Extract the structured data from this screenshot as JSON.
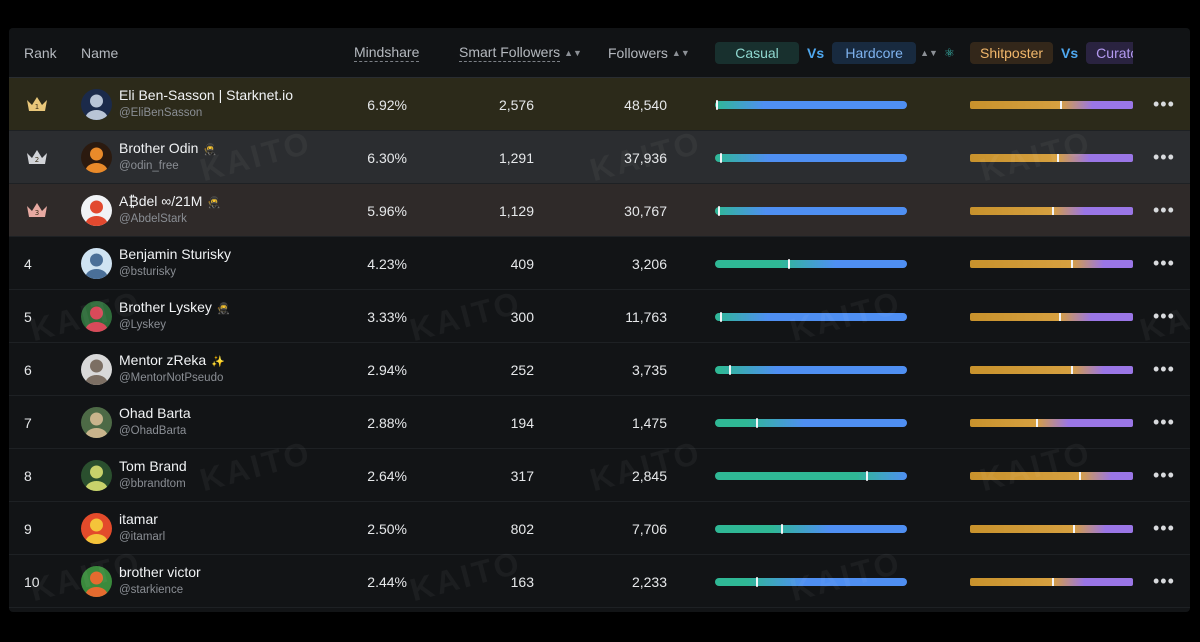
{
  "header": {
    "rank": "Rank",
    "name": "Name",
    "mindshare": "Mindshare",
    "smart_followers": "Smart Followers",
    "followers": "Followers",
    "casual": "Casual",
    "vs1": "Vs",
    "hardcore": "Hardcore",
    "shitposter": "Shitposter",
    "vs2": "Vs",
    "curator": "Curato"
  },
  "watermark": "KAITO",
  "rows": [
    {
      "rank": "1",
      "name": "Eli Ben-Sasson | Starknet.io",
      "badge": "",
      "handle": "@EliBenSasson",
      "mindshare": "6.92%",
      "smart": "2,576",
      "followers": "48,540",
      "casual_pct": 0.0,
      "shit_pct": 0.56
    },
    {
      "rank": "2",
      "name": "Brother Odin",
      "badge": "🥷",
      "handle": "@odin_free",
      "mindshare": "6.30%",
      "smart": "1,291",
      "followers": "37,936",
      "casual_pct": 0.02,
      "shit_pct": 0.54
    },
    {
      "rank": "3",
      "name": "A₿del ∞/21M",
      "badge": "🥷",
      "handle": "@AbdelStark",
      "mindshare": "5.96%",
      "smart": "1,129",
      "followers": "30,767",
      "casual_pct": 0.01,
      "shit_pct": 0.51
    },
    {
      "rank": "4",
      "name": "Benjamin Sturisky",
      "badge": "",
      "handle": "@bsturisky",
      "mindshare": "4.23%",
      "smart": "409",
      "followers": "3,206",
      "casual_pct": 0.38,
      "shit_pct": 0.63
    },
    {
      "rank": "5",
      "name": "Brother Lyskey",
      "badge": "🥷",
      "handle": "@Lyskey",
      "mindshare": "3.33%",
      "smart": "300",
      "followers": "11,763",
      "casual_pct": 0.02,
      "shit_pct": 0.55
    },
    {
      "rank": "6",
      "name": "Mentor zReka",
      "badge": "✨",
      "handle": "@MentorNotPseudo",
      "mindshare": "2.94%",
      "smart": "252",
      "followers": "3,735",
      "casual_pct": 0.07,
      "shit_pct": 0.63
    },
    {
      "rank": "7",
      "name": "Ohad Barta",
      "badge": "",
      "handle": "@OhadBarta",
      "mindshare": "2.88%",
      "smart": "194",
      "followers": "1,475",
      "casual_pct": 0.21,
      "shit_pct": 0.41
    },
    {
      "rank": "8",
      "name": "Tom Brand",
      "badge": "",
      "handle": "@bbrandtom",
      "mindshare": "2.64%",
      "smart": "317",
      "followers": "2,845",
      "casual_pct": 0.79,
      "shit_pct": 0.68
    },
    {
      "rank": "9",
      "name": "itamar",
      "badge": "",
      "handle": "@itamarl",
      "mindshare": "2.50%",
      "smart": "802",
      "followers": "7,706",
      "casual_pct": 0.34,
      "shit_pct": 0.64
    },
    {
      "rank": "10",
      "name": "brother victor",
      "badge": "",
      "handle": "@starkience",
      "mindshare": "2.44%",
      "smart": "163",
      "followers": "2,233",
      "casual_pct": 0.21,
      "shit_pct": 0.51
    }
  ],
  "colors": {
    "casual_start": "#2fb895",
    "casual_end": "#4f8ff2",
    "shit_start": "#c8922c",
    "shit_end": "#9a76e6",
    "crown_gold": "#e9c77a",
    "crown_silver": "#d2d4d8",
    "crown_bronze": "#e7a9a1"
  }
}
